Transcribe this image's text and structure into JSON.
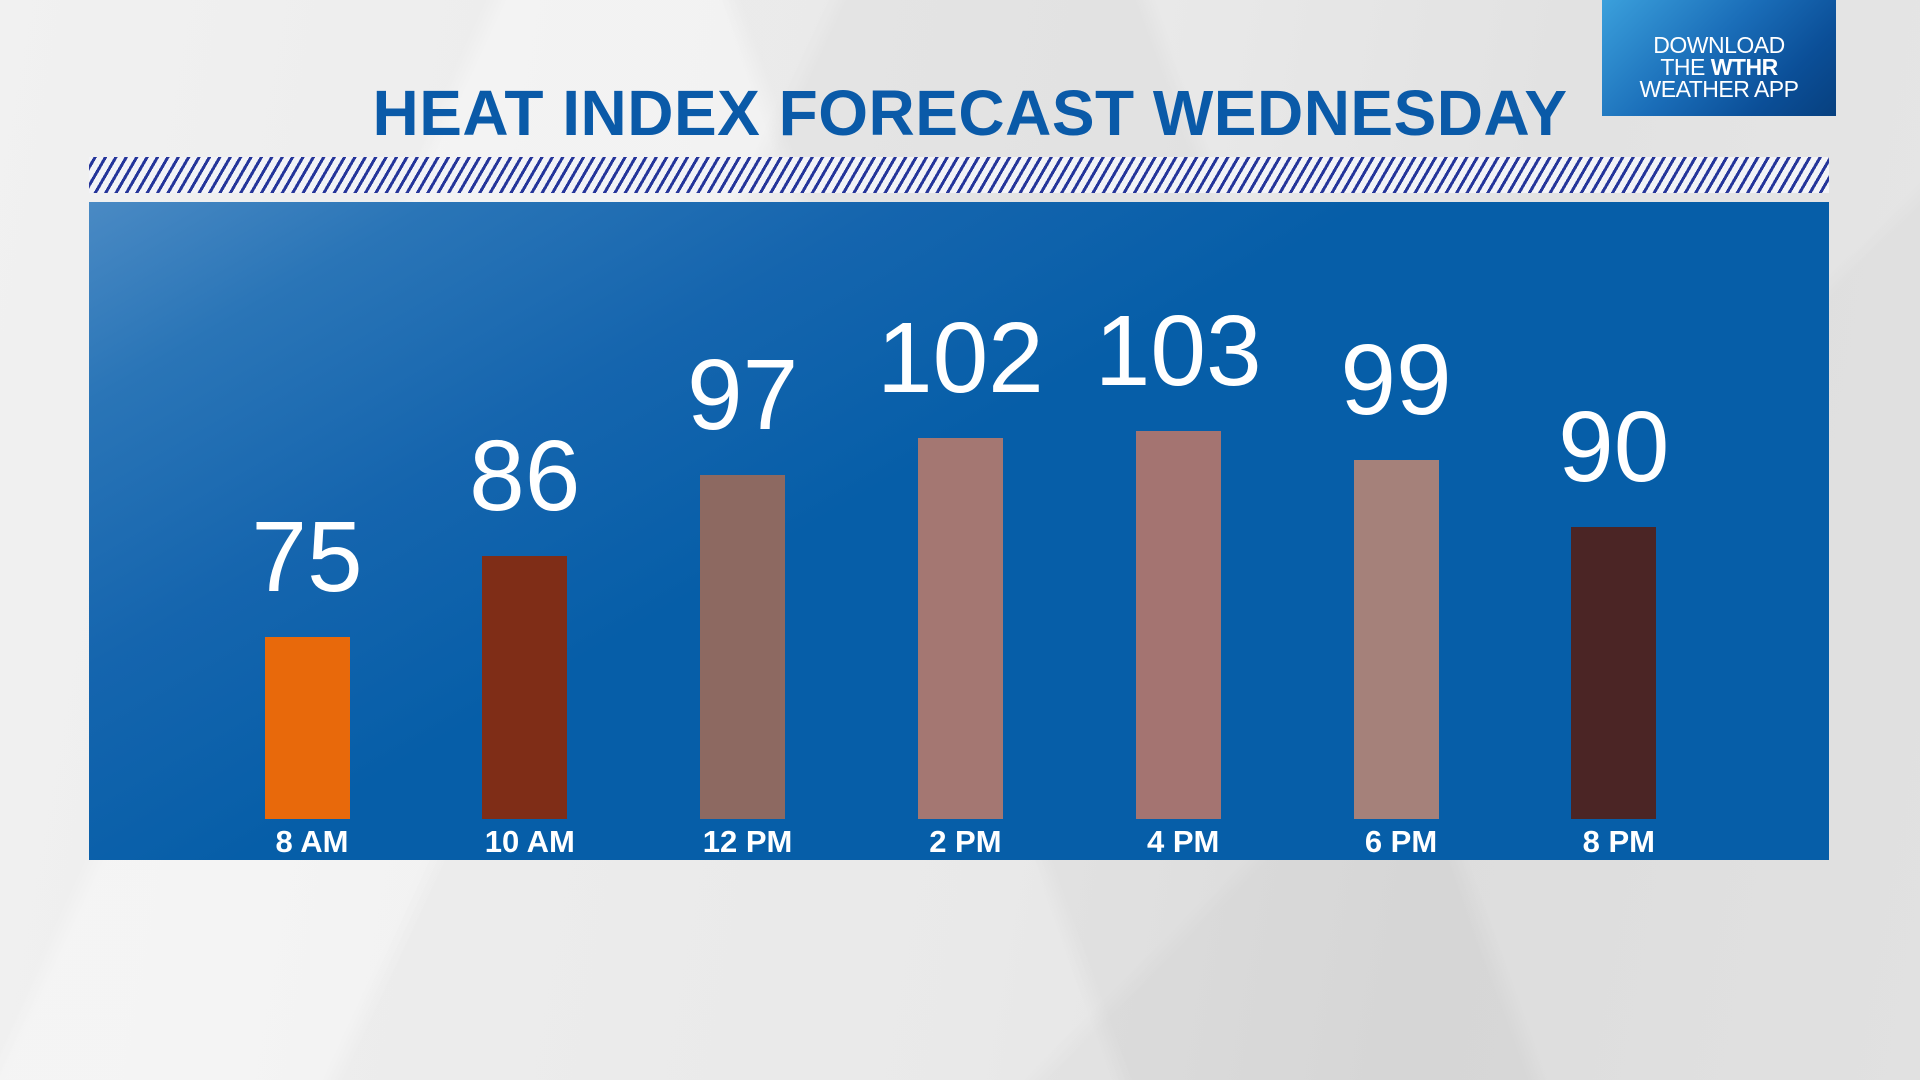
{
  "header": {
    "title": "HEAT INDEX FORECAST WEDNESDAY"
  },
  "badge": {
    "line1": "DOWNLOAD",
    "line2_prefix": "THE ",
    "line2_bold": "WTHR",
    "line3": "WEATHER APP"
  },
  "colors": {
    "title": "#0a5aa8",
    "panel": "#065ea8",
    "hatch": "#25359a"
  },
  "chart_data": {
    "type": "bar",
    "title": "HEAT INDEX FORECAST WEDNESDAY",
    "xlabel": "",
    "ylabel": "",
    "categories": [
      "8 AM",
      "10 AM",
      "12 PM",
      "2 PM",
      "4 PM",
      "6 PM",
      "8 PM"
    ],
    "values": [
      75,
      86,
      97,
      102,
      103,
      99,
      90
    ],
    "bar_colors": [
      "#e8690b",
      "#7f2d17",
      "#8d6961",
      "#a47772",
      "#a47471",
      "#a5817a",
      "#4b2525"
    ],
    "data_labels": [
      "75",
      "86",
      "97",
      "102",
      "103",
      "99",
      "90"
    ],
    "grid": false,
    "legend": null
  }
}
